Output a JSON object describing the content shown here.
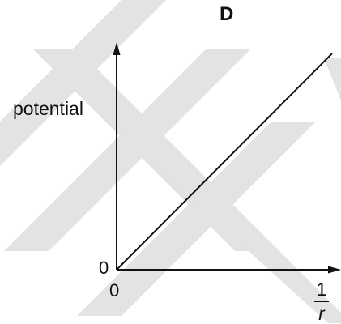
{
  "chart_data": {
    "type": "line",
    "title": "D",
    "ylabel": "potential",
    "xlabel": "1/r",
    "xlabel_parts": {
      "numerator": "1",
      "denominator": "r"
    },
    "x_origin_label": "0",
    "y_origin_label": "0",
    "grid": false,
    "legend": "none",
    "series": [
      {
        "x": [
          0,
          1
        ],
        "y": [
          0,
          1
        ]
      }
    ],
    "xlim": [
      0,
      1
    ],
    "ylim": [
      0,
      1
    ],
    "colors": {
      "line": "#111111",
      "axes": "#111111",
      "watermark": "#e3e3e3"
    }
  }
}
